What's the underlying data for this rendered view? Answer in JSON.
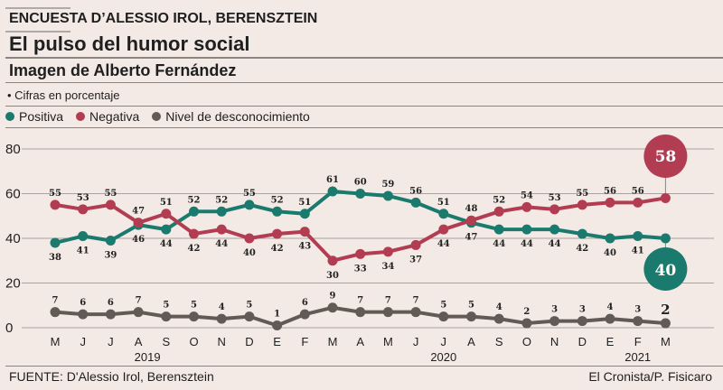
{
  "header": {
    "kicker": "ENCUESTA D’ALESSIO IROL, BERENSZTEIN",
    "title": "El pulso del humor social",
    "subtitle": "Imagen de Alberto Fernández",
    "note": "• Cifras en porcentaje"
  },
  "legend": [
    {
      "label": "Positiva",
      "color": "#1a7a6e"
    },
    {
      "label": "Negativa",
      "color": "#b23d52"
    },
    {
      "label": "Nivel de desconocimiento",
      "color": "#615a55"
    }
  ],
  "footer": {
    "source": "FUENTE: D'Alessio Irol, Berensztein",
    "credit": "El Cronista/P. Fisicaro"
  },
  "chart_data": {
    "type": "line",
    "title": "Imagen de Alberto Fernández",
    "xlabel": "",
    "ylabel": "Cifras en porcentaje",
    "ylim": [
      0,
      80
    ],
    "yticks": [
      0,
      20,
      40,
      60,
      80
    ],
    "grid": true,
    "legend_position": "top-left",
    "categories": [
      "M",
      "J",
      "J",
      "A",
      "S",
      "O",
      "N",
      "D",
      "E",
      "F",
      "M",
      "A",
      "M",
      "J",
      "J",
      "A",
      "S",
      "O",
      "N",
      "D",
      "E",
      "F",
      "M"
    ],
    "year_labels": [
      {
        "label": "2019",
        "at_index": 3
      },
      {
        "label": "2020",
        "at_index": 14
      },
      {
        "label": "2021",
        "at_index": 21
      }
    ],
    "series": [
      {
        "name": "Positiva",
        "color": "#1a7a6e",
        "values": [
          38,
          41,
          39,
          46,
          44,
          52,
          52,
          55,
          52,
          51,
          61,
          60,
          59,
          56,
          51,
          47,
          44,
          44,
          44,
          42,
          40,
          41,
          40
        ],
        "last_value_bubble": "40"
      },
      {
        "name": "Negativa",
        "color": "#b23d52",
        "values": [
          55,
          53,
          55,
          47,
          51,
          42,
          44,
          40,
          42,
          43,
          30,
          33,
          34,
          37,
          44,
          48,
          52,
          54,
          53,
          55,
          56,
          56,
          58
        ],
        "last_value_bubble": "58"
      },
      {
        "name": "Nivel de desconocimiento",
        "color": "#615a55",
        "values": [
          7,
          6,
          6,
          7,
          5,
          5,
          4,
          5,
          1,
          6,
          9,
          7,
          7,
          7,
          5,
          5,
          4,
          2,
          3,
          3,
          4,
          3,
          2
        ]
      }
    ]
  }
}
